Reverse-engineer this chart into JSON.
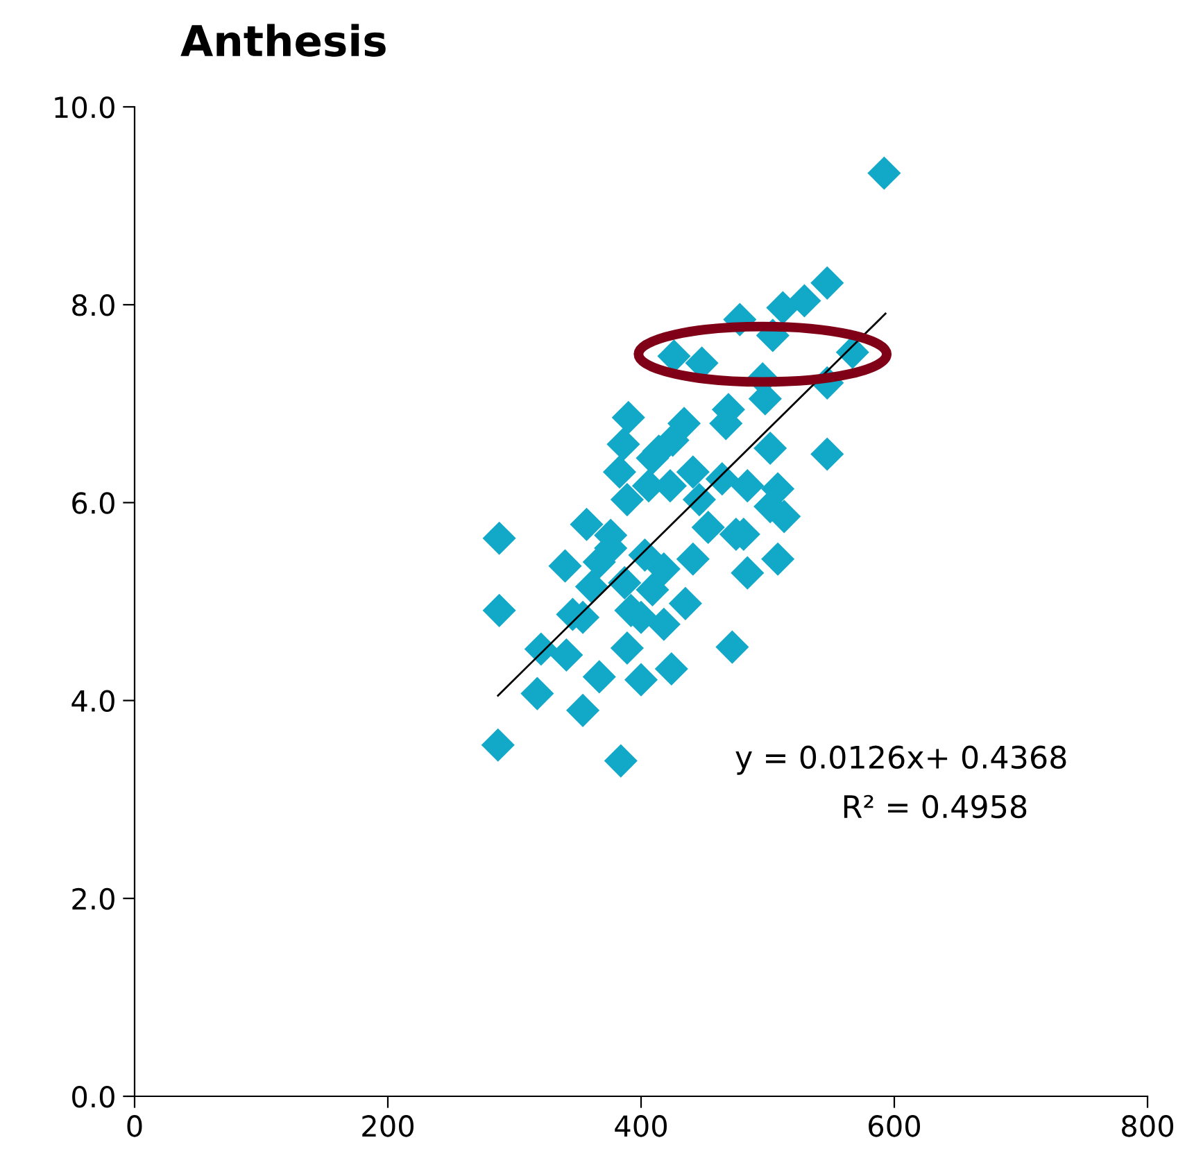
{
  "chart_data": {
    "type": "scatter",
    "title": "Anthesis",
    "xlim": [
      0,
      800
    ],
    "xticks": [
      0,
      200,
      400,
      600,
      800
    ],
    "ylim": [
      0,
      10
    ],
    "yticks": [
      {
        "value": 0,
        "label": "0.0"
      },
      {
        "value": 2,
        "label": "2.0"
      },
      {
        "value": 4,
        "label": "4.0"
      },
      {
        "value": 6,
        "label": "6.0"
      },
      {
        "value": 8,
        "label": "8.0"
      },
      {
        "value": 10,
        "label": "10.0"
      }
    ],
    "grid": false,
    "legend": false,
    "series": [
      {
        "color": "#12a8c8",
        "marker": "diamond",
        "x": [
          592,
          547,
          529,
          512,
          478,
          504,
          426,
          448,
          567,
          496,
          547,
          498,
          469,
          467,
          547,
          502,
          390,
          434,
          425,
          386,
          414,
          409,
          441,
          383,
          464,
          484,
          508,
          406,
          423,
          389,
          446,
          502,
          513,
          288,
          357,
          376,
          453,
          475,
          481,
          376,
          403,
          441,
          508,
          340,
          367,
          418,
          484,
          361,
          387,
          409,
          346,
          288,
          354,
          400,
          418,
          435,
          392,
          321,
          341,
          389,
          472,
          367,
          400,
          424,
          318,
          354,
          287,
          384
        ],
        "values": [
          9.33,
          8.22,
          8.04,
          7.97,
          7.85,
          7.69,
          7.48,
          7.41,
          7.52,
          7.25,
          7.21,
          7.05,
          6.94,
          6.8,
          6.49,
          6.55,
          6.86,
          6.8,
          6.63,
          6.59,
          6.52,
          6.45,
          6.31,
          6.31,
          6.24,
          6.17,
          6.14,
          6.17,
          6.17,
          6.03,
          6.03,
          5.96,
          5.86,
          5.64,
          5.78,
          5.67,
          5.75,
          5.68,
          5.68,
          5.54,
          5.47,
          5.43,
          5.43,
          5.36,
          5.4,
          5.33,
          5.29,
          5.15,
          5.19,
          5.12,
          4.87,
          4.91,
          4.84,
          4.84,
          4.77,
          4.98,
          4.91,
          4.52,
          4.46,
          4.53,
          4.54,
          4.24,
          4.21,
          4.32,
          4.07,
          3.9,
          3.55,
          3.39
        ]
      },
      {
        "type": "line",
        "color": "#000000",
        "marker": "none",
        "line_style": "solid",
        "x": [
          287,
          593
        ],
        "values": [
          4.05,
          7.91
        ]
      }
    ],
    "annotations": [
      "y = 0.0126x+ 0.4368",
      "R² = 0.4958"
    ]
  }
}
